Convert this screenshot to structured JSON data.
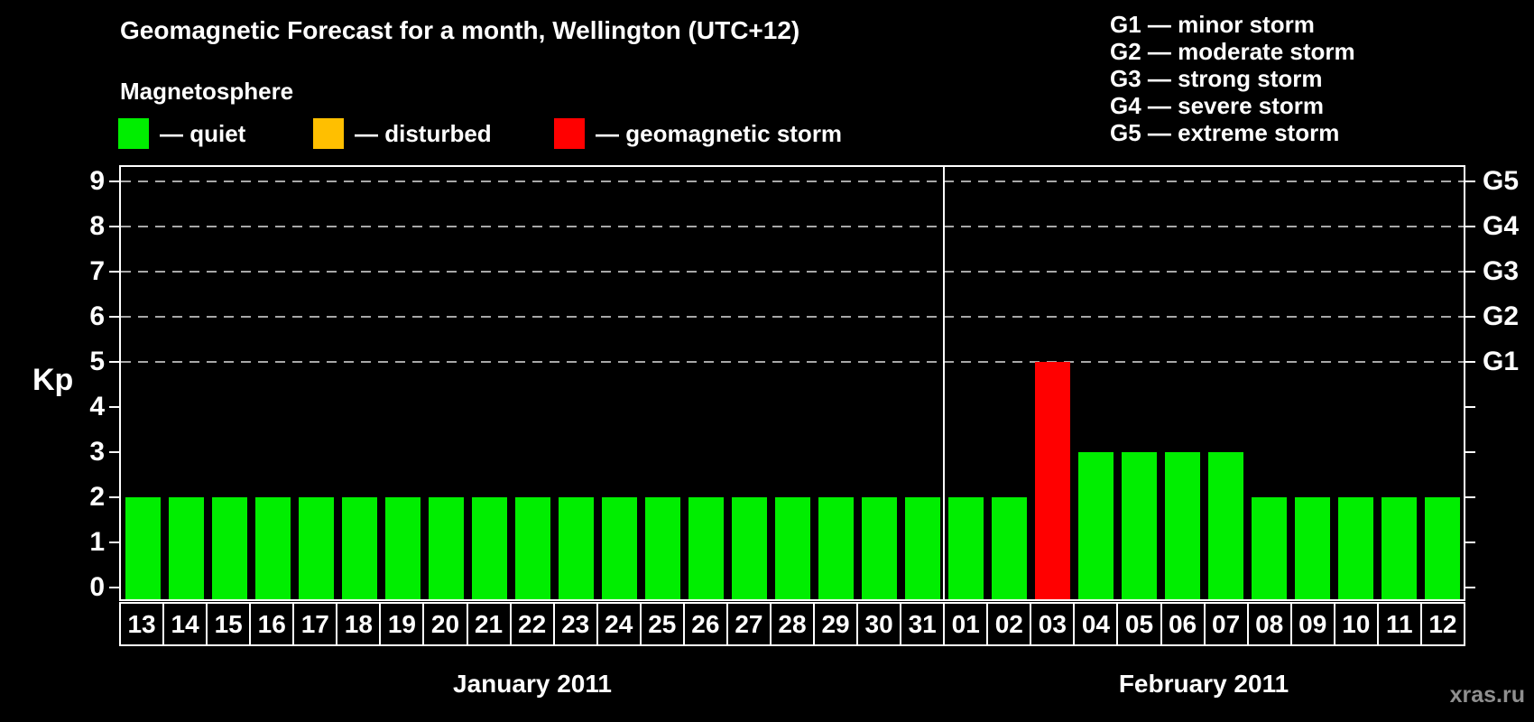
{
  "page": {
    "title": "Geomagnetic Forecast for a month, Wellington (UTC+12)",
    "watermark": "xras.ru"
  },
  "magnetosphere_legend": {
    "heading": "Magnetosphere",
    "items": [
      {
        "name": "quiet",
        "label": "— quiet",
        "color": "#00EE00"
      },
      {
        "name": "disturbed",
        "label": "— disturbed",
        "color": "#FFBF00"
      },
      {
        "name": "storm",
        "label": "— geomagnetic storm",
        "color": "#FF0000"
      }
    ]
  },
  "g_scale_legend": {
    "items": [
      {
        "code": "G1",
        "label": "G1 — minor storm"
      },
      {
        "code": "G2",
        "label": "G2 — moderate storm"
      },
      {
        "code": "G3",
        "label": "G3 — strong storm"
      },
      {
        "code": "G4",
        "label": "G4 — severe storm"
      },
      {
        "code": "G5",
        "label": "G5 — extreme storm"
      }
    ]
  },
  "chart_data": {
    "type": "bar",
    "title": "Geomagnetic Forecast for a month, Wellington (UTC+12)",
    "ylabel": "Kp",
    "ylim": [
      0,
      9
    ],
    "yticks": [
      "0",
      "1",
      "2",
      "3",
      "4",
      "5",
      "6",
      "7",
      "8",
      "9"
    ],
    "grid": "dashed horizontal at Kp 5-9",
    "gridlines_at_kp": [
      5,
      6,
      7,
      8,
      9
    ],
    "right_axis_labels": [
      {
        "text": "G1",
        "kp": 5
      },
      {
        "text": "G2",
        "kp": 6
      },
      {
        "text": "G3",
        "kp": 7
      },
      {
        "text": "G4",
        "kp": 8
      },
      {
        "text": "G5",
        "kp": 9
      }
    ],
    "series_colors": {
      "quiet": "#00EE00",
      "disturbed": "#FFBF00",
      "storm": "#FF0000"
    },
    "months": [
      {
        "label": "January 2011",
        "days": [
          {
            "day": "13",
            "kp": 2,
            "status": "quiet"
          },
          {
            "day": "14",
            "kp": 2,
            "status": "quiet"
          },
          {
            "day": "15",
            "kp": 2,
            "status": "quiet"
          },
          {
            "day": "16",
            "kp": 2,
            "status": "quiet"
          },
          {
            "day": "17",
            "kp": 2,
            "status": "quiet"
          },
          {
            "day": "18",
            "kp": 2,
            "status": "quiet"
          },
          {
            "day": "19",
            "kp": 2,
            "status": "quiet"
          },
          {
            "day": "20",
            "kp": 2,
            "status": "quiet"
          },
          {
            "day": "21",
            "kp": 2,
            "status": "quiet"
          },
          {
            "day": "22",
            "kp": 2,
            "status": "quiet"
          },
          {
            "day": "23",
            "kp": 2,
            "status": "quiet"
          },
          {
            "day": "24",
            "kp": 2,
            "status": "quiet"
          },
          {
            "day": "25",
            "kp": 2,
            "status": "quiet"
          },
          {
            "day": "26",
            "kp": 2,
            "status": "quiet"
          },
          {
            "day": "27",
            "kp": 2,
            "status": "quiet"
          },
          {
            "day": "28",
            "kp": 2,
            "status": "quiet"
          },
          {
            "day": "29",
            "kp": 2,
            "status": "quiet"
          },
          {
            "day": "30",
            "kp": 2,
            "status": "quiet"
          },
          {
            "day": "31",
            "kp": 2,
            "status": "quiet"
          }
        ]
      },
      {
        "label": "February 2011",
        "days": [
          {
            "day": "01",
            "kp": 2,
            "status": "quiet"
          },
          {
            "day": "02",
            "kp": 2,
            "status": "quiet"
          },
          {
            "day": "03",
            "kp": 5,
            "status": "storm"
          },
          {
            "day": "04",
            "kp": 3,
            "status": "quiet"
          },
          {
            "day": "05",
            "kp": 3,
            "status": "quiet"
          },
          {
            "day": "06",
            "kp": 3,
            "status": "quiet"
          },
          {
            "day": "07",
            "kp": 3,
            "status": "quiet"
          },
          {
            "day": "08",
            "kp": 2,
            "status": "quiet"
          },
          {
            "day": "09",
            "kp": 2,
            "status": "quiet"
          },
          {
            "day": "10",
            "kp": 2,
            "status": "quiet"
          },
          {
            "day": "11",
            "kp": 2,
            "status": "quiet"
          },
          {
            "day": "12",
            "kp": 2,
            "status": "quiet"
          }
        ]
      }
    ]
  }
}
